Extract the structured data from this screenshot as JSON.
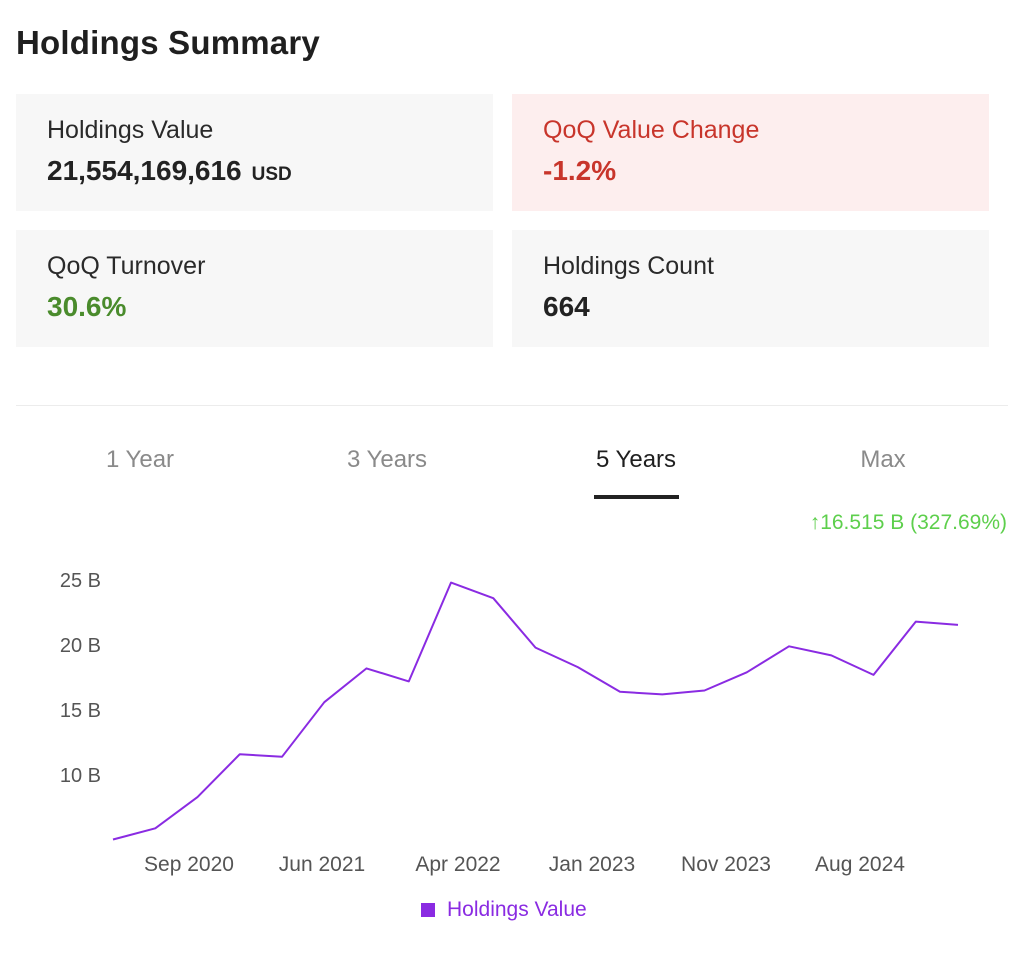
{
  "header": {
    "title": "Holdings Summary"
  },
  "cards": {
    "holdings_value": {
      "label": "Holdings Value",
      "value": "21,554,169,616",
      "unit": "USD"
    },
    "qoq_value_change": {
      "label": "QoQ Value Change",
      "value": "-1.2%",
      "color": "#c8352b"
    },
    "qoq_turnover": {
      "label": "QoQ Turnover",
      "value": "30.6%",
      "color": "#4a8b2c"
    },
    "holdings_count": {
      "label": "Holdings Count",
      "value": "664"
    }
  },
  "tabs": [
    {
      "label": "1 Year",
      "active": false
    },
    {
      "label": "3 Years",
      "active": false
    },
    {
      "label": "5 Years",
      "active": true
    },
    {
      "label": "Max",
      "active": false
    }
  ],
  "change_summary": {
    "arrow": "↑",
    "text": "16.515 B (327.69%)",
    "color": "#5dcf4c"
  },
  "chart_data": {
    "type": "line",
    "title": "",
    "xlabel": "",
    "ylabel": "",
    "x_tick_labels": [
      "Sep 2020",
      "Jun 2021",
      "Apr 2022",
      "Jan 2023",
      "Nov 2023",
      "Aug 2024"
    ],
    "y_tick_labels": [
      "10 B",
      "15 B",
      "20 B",
      "25 B"
    ],
    "y_ticks": [
      10,
      15,
      20,
      25
    ],
    "ylim": [
      5,
      25.5
    ],
    "series": [
      {
        "name": "Holdings Value",
        "color": "#8a2be2",
        "values": [
          5.04,
          5.9,
          8.3,
          11.6,
          11.4,
          15.6,
          18.2,
          17.2,
          24.8,
          23.6,
          19.8,
          18.3,
          16.4,
          16.2,
          16.5,
          17.9,
          19.9,
          19.2,
          17.7,
          21.8,
          21.55
        ]
      }
    ],
    "legend": "bottom",
    "grid": false
  }
}
